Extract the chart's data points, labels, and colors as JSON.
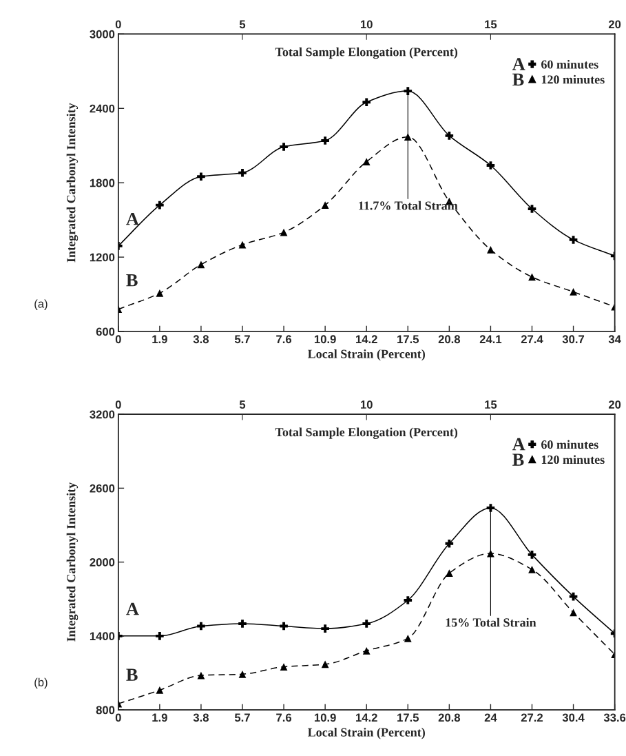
{
  "chart_data": [
    {
      "type": "line",
      "categories": [
        "0",
        "1.9",
        "3.8",
        "5.7",
        "7.6",
        "10.9",
        "14.2",
        "17.5",
        "20.8",
        "24.1",
        "27.4",
        "30.7",
        "34"
      ],
      "xlabel": "Local Strain (Percent)",
      "ylabel": "Integrated Carbonyl Intensity",
      "x2label": "Total Sample Elongation (Percent)",
      "ylim": [
        600,
        3000
      ],
      "yticks": [
        600,
        1200,
        1800,
        2400,
        3000
      ],
      "x2lim": [
        0,
        20
      ],
      "x2ticks": [
        0,
        5,
        10,
        15,
        20
      ],
      "grid": false,
      "legend": "top right",
      "series": [
        {
          "name": "60 minutes",
          "color": "#000000",
          "marker": "cross",
          "line_style": "solid",
          "values": [
            1290,
            1620,
            1850,
            1880,
            2090,
            2140,
            2450,
            2540,
            2180,
            1940,
            1590,
            1340,
            1210
          ]
        },
        {
          "name": "120 minutes",
          "color": "#000000",
          "marker": "triangle",
          "line_style": "dashed",
          "values": [
            780,
            910,
            1140,
            1300,
            1400,
            1620,
            1970,
            2170,
            1650,
            1260,
            1040,
            920,
            800
          ]
        }
      ],
      "annotations": [
        {
          "text": "A",
          "x": "0",
          "y": 1290
        },
        {
          "text": "B",
          "x": "0",
          "y": 780
        },
        {
          "text": "11.7% Total Strain",
          "x": "17.5",
          "y": 2540
        },
        "(a)",
        "A",
        "B"
      ]
    },
    {
      "type": "line",
      "categories": [
        "0",
        "1.9",
        "3.8",
        "5.7",
        "7.6",
        "10.9",
        "14.2",
        "17.5",
        "20.8",
        "24",
        "27.2",
        "30.4",
        "33.6"
      ],
      "xlabel": "Local Strain (Percent)",
      "ylabel": "Integrated Carbonyl Intensity",
      "x2label": "Total Sample Elongation (Percent)",
      "ylim": [
        800,
        3200
      ],
      "yticks": [
        800,
        1400,
        2000,
        2600,
        3200
      ],
      "x2lim": [
        0,
        20
      ],
      "x2ticks": [
        0,
        5,
        10,
        15,
        20
      ],
      "grid": false,
      "legend": "top right",
      "series": [
        {
          "name": "60 minutes",
          "color": "#000000",
          "marker": "cross",
          "line_style": "solid",
          "values": [
            1400,
            1400,
            1480,
            1500,
            1480,
            1460,
            1500,
            1690,
            2150,
            2440,
            2060,
            1720,
            1420
          ]
        },
        {
          "name": "120 minutes",
          "color": "#000000",
          "marker": "triangle",
          "line_style": "dashed",
          "values": [
            850,
            960,
            1080,
            1090,
            1150,
            1170,
            1280,
            1380,
            1910,
            2070,
            1940,
            1590,
            1250
          ]
        }
      ],
      "annotations": [
        {
          "text": "A",
          "x": "0",
          "y": 1400
        },
        {
          "text": "B",
          "x": "0",
          "y": 850
        },
        {
          "text": "15% Total Strain",
          "x": "24",
          "y": 2440
        },
        "(b)",
        "A",
        "B"
      ]
    }
  ]
}
